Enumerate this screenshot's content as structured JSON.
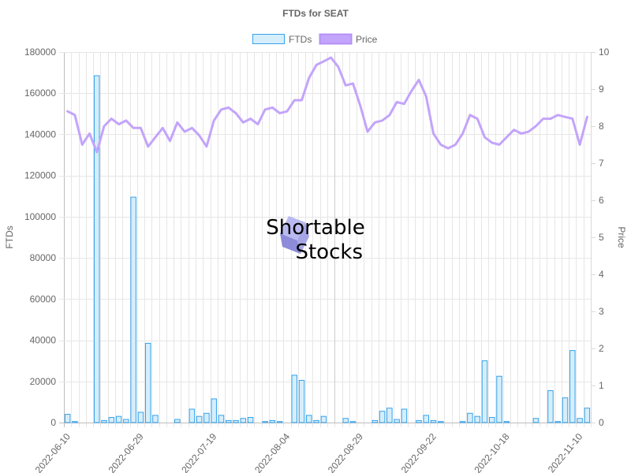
{
  "chart_data": {
    "type": "bar",
    "title": "FTDs for SEAT",
    "ylabel_left": "FTDs",
    "ylabel_right": "Price",
    "ylim_left": [
      0,
      180000
    ],
    "ylim_right": [
      0,
      10
    ],
    "yticks_left": [
      "0",
      "20000",
      "40000",
      "60000",
      "80000",
      "100000",
      "120000",
      "140000",
      "160000",
      "180000"
    ],
    "yticks_right": [
      "0",
      "1",
      "2",
      "3",
      "4",
      "5",
      "6",
      "7",
      "8",
      "9",
      "10"
    ],
    "x_tick_labels": [
      "2022-06-10",
      "2022-06-29",
      "2022-07-19",
      "2022-08-04",
      "2022-08-29",
      "2022-09-22",
      "2022-10-18",
      "2022-11-10"
    ],
    "x_tick_positions": [
      0,
      10,
      20,
      30,
      40,
      50,
      60,
      70
    ],
    "grid": true,
    "legend_position": "top",
    "series": [
      {
        "name": "FTDs",
        "type": "bar",
        "axis": "left",
        "color": "#36a2eb",
        "fill": "#d6eefb",
        "values": [
          4000,
          500,
          0,
          0,
          168500,
          1000,
          2500,
          3000,
          1500,
          109500,
          5000,
          38500,
          3500,
          0,
          0,
          1500,
          0,
          6500,
          3000,
          4500,
          11500,
          3500,
          1000,
          1000,
          2000,
          2500,
          0,
          500,
          1000,
          500,
          0,
          23000,
          20500,
          3500,
          1000,
          3000,
          0,
          0,
          2000,
          500,
          0,
          0,
          1000,
          5500,
          7000,
          1500,
          6500,
          0,
          1000,
          3500,
          1000,
          500,
          0,
          0,
          500,
          4500,
          3000,
          30000,
          2500,
          22500,
          500,
          0,
          0,
          0,
          2000,
          0,
          15500,
          500,
          12000,
          35000,
          2000,
          7000
        ]
      },
      {
        "name": "Price",
        "type": "line",
        "axis": "right",
        "color": "#c3a4fb",
        "values": [
          8.4,
          8.3,
          7.5,
          7.8,
          7.3,
          8.0,
          8.2,
          8.05,
          8.15,
          7.95,
          7.95,
          7.45,
          7.7,
          7.95,
          7.6,
          8.1,
          7.85,
          7.95,
          7.75,
          7.45,
          8.15,
          8.45,
          8.5,
          8.35,
          8.1,
          8.2,
          8.05,
          8.45,
          8.5,
          8.35,
          8.4,
          8.7,
          8.7,
          9.3,
          9.65,
          9.75,
          9.85,
          9.6,
          9.1,
          9.15,
          8.55,
          7.85,
          8.1,
          8.15,
          8.3,
          8.65,
          8.6,
          8.95,
          9.25,
          8.8,
          7.8,
          7.5,
          7.4,
          7.5,
          7.8,
          8.3,
          8.2,
          7.7,
          7.55,
          7.5,
          7.7,
          7.9,
          7.8,
          7.85,
          8.0,
          8.2,
          8.2,
          8.3,
          8.25,
          8.2,
          7.5,
          8.25
        ]
      }
    ]
  },
  "watermark": {
    "line1": "Shortable",
    "line2": "Stocks"
  }
}
